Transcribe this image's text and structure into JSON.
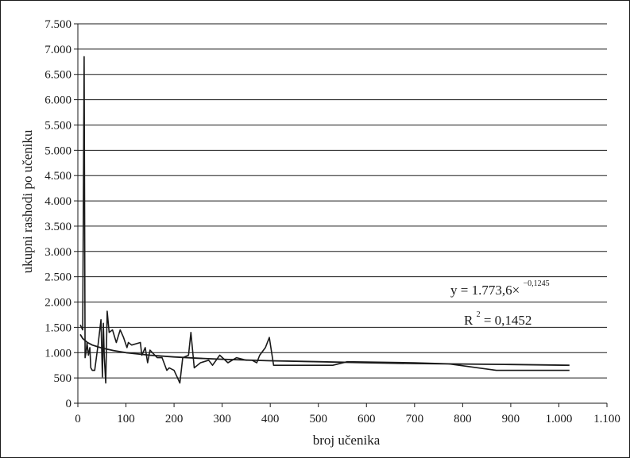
{
  "chart_data": {
    "type": "line",
    "xlabel": "broj učenika",
    "ylabel": "ukupni rashodi po učeniku",
    "xlim": [
      0,
      1100
    ],
    "ylim": [
      0,
      7500
    ],
    "x_ticks": [
      0,
      100,
      200,
      300,
      400,
      500,
      600,
      700,
      800,
      900,
      1000,
      1100
    ],
    "x_tick_labels": [
      "0",
      "100",
      "200",
      "300",
      "400",
      "500",
      "600",
      "700",
      "800",
      "900",
      "1.000",
      "1.100"
    ],
    "y_ticks": [
      0,
      500,
      1000,
      1500,
      2000,
      2500,
      3000,
      3500,
      4000,
      4500,
      5000,
      5500,
      6000,
      6500,
      7000,
      7500
    ],
    "y_tick_labels": [
      "0",
      "500",
      "1.000",
      "1.500",
      "2.000",
      "2.500",
      "3.000",
      "3.500",
      "4.000",
      "4.500",
      "5.000",
      "5.500",
      "6.000",
      "6.500",
      "7.000",
      "7.500"
    ],
    "grid": "horizontal",
    "series": [
      {
        "x": [
          5,
          10,
          13,
          15,
          17,
          19,
          22,
          25,
          27,
          30,
          35,
          42,
          48,
          51,
          53,
          55,
          58,
          61,
          65,
          72,
          80,
          88,
          95,
          102,
          105,
          112,
          130,
          133,
          140,
          145,
          150,
          155,
          165,
          175,
          185,
          190,
          200,
          212,
          218,
          230,
          235,
          242,
          255,
          272,
          280,
          295,
          312,
          330,
          350,
          362,
          372,
          378,
          390,
          398,
          407,
          530,
          560,
          700,
          770,
          870,
          960,
          1022
        ],
        "y": [
          1550,
          1450,
          6850,
          900,
          1000,
          1200,
          950,
          1100,
          700,
          650,
          650,
          1150,
          1650,
          520,
          1580,
          900,
          400,
          1820,
          1400,
          1450,
          1200,
          1450,
          1300,
          1100,
          1200,
          1150,
          1200,
          950,
          1100,
          800,
          1050,
          1000,
          900,
          900,
          650,
          700,
          650,
          400,
          900,
          950,
          1400,
          700,
          800,
          850,
          750,
          950,
          800,
          900,
          850,
          850,
          800,
          950,
          1100,
          1300,
          750,
          750,
          820,
          800,
          780,
          650,
          650,
          650
        ]
      },
      {
        "x": [
          5,
          10,
          20,
          30,
          50,
          75,
          100,
          150,
          200,
          250,
          300,
          400,
          500,
          600,
          700,
          800,
          900,
          1022
        ],
        "y": [
          1360,
          1280,
          1200,
          1150,
          1090,
          1040,
          1000,
          950,
          915,
          890,
          870,
          840,
          820,
          800,
          785,
          775,
          765,
          750
        ]
      }
    ],
    "annotations": [
      "y = 1.773,6×",
      "−0,1245",
      "R",
      "2",
      " = 0,1452"
    ]
  }
}
